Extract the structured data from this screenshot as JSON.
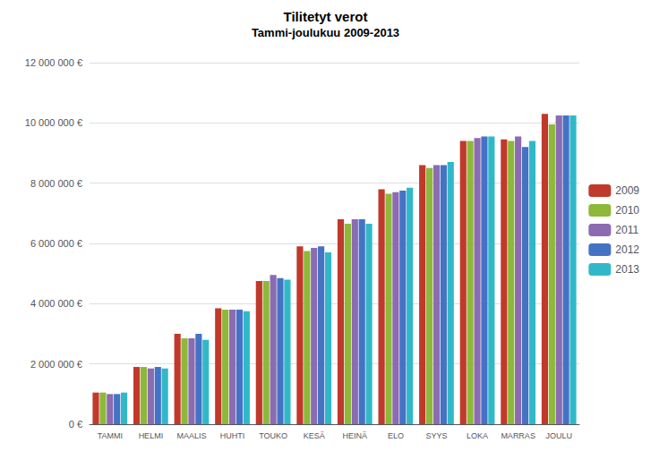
{
  "chart_data": {
    "type": "bar",
    "title": "Tilitetyt verot",
    "subtitle": "Tammi-joulukuu 2009-2013",
    "categories": [
      "TAMMI",
      "HELMI",
      "MAALIS",
      "HUHTI",
      "TOUKO",
      "KESÄ",
      "HEINÄ",
      "ELO",
      "SYYS",
      "LOKA",
      "MARRAS",
      "JOULU"
    ],
    "series": [
      {
        "name": "2009",
        "color": "#C0392B",
        "values": [
          1050000,
          1900000,
          3000000,
          3850000,
          4750000,
          5900000,
          6800000,
          7800000,
          8600000,
          9400000,
          9450000,
          10300000
        ]
      },
      {
        "name": "2010",
        "color": "#8DB83A",
        "values": [
          1050000,
          1900000,
          2850000,
          3800000,
          4750000,
          5750000,
          6650000,
          7650000,
          8500000,
          9400000,
          9400000,
          9950000
        ]
      },
      {
        "name": "2011",
        "color": "#8B6BB1",
        "values": [
          1000000,
          1850000,
          2850000,
          3800000,
          4950000,
          5850000,
          6800000,
          7700000,
          8600000,
          9500000,
          9550000,
          10250000
        ]
      },
      {
        "name": "2012",
        "color": "#4472C4",
        "values": [
          1000000,
          1900000,
          3000000,
          3800000,
          4850000,
          5900000,
          6800000,
          7750000,
          8600000,
          9550000,
          9200000,
          10250000
        ]
      },
      {
        "name": "2013",
        "color": "#31B8C8",
        "values": [
          1050000,
          1850000,
          2800000,
          3750000,
          4800000,
          5700000,
          6650000,
          7850000,
          8700000,
          9550000,
          9400000,
          10250000
        ]
      }
    ],
    "ylim": [
      0,
      12000000
    ],
    "yticks": [
      {
        "value": 0,
        "label": "0 €"
      },
      {
        "value": 2000000,
        "label": "2 000 000 €"
      },
      {
        "value": 4000000,
        "label": "4 000 000 €"
      },
      {
        "value": 6000000,
        "label": "6 000 000 €"
      },
      {
        "value": 8000000,
        "label": "8 000 000 €"
      },
      {
        "value": 10000000,
        "label": "10 000 000 €"
      },
      {
        "value": 12000000,
        "label": "12 000 000 €"
      }
    ],
    "grid": true,
    "legend": "right"
  }
}
